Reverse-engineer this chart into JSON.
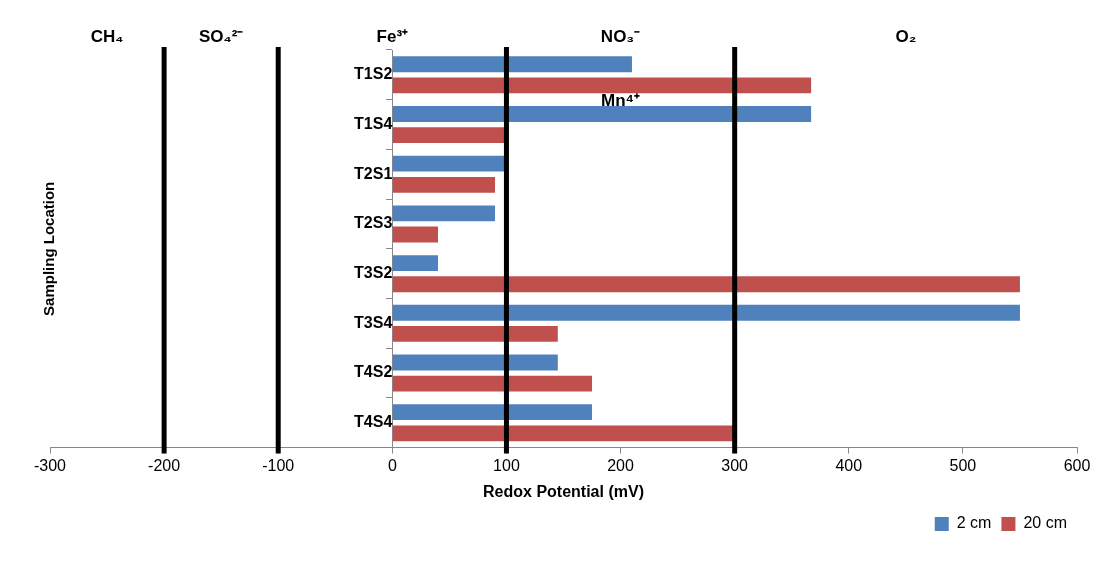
{
  "chart_data": {
    "type": "bar",
    "orientation": "horizontal",
    "xlabel": "Redox Potential (mV)",
    "ylabel": "Sampling Location",
    "categories": [
      "T1S2",
      "T1S4",
      "T2S1",
      "T2S3",
      "T3S2",
      "T3S4",
      "T4S2",
      "T4S4"
    ],
    "series": [
      {
        "name": "2 cm",
        "color": "#4f81bd",
        "values": [
          210,
          367,
          100,
          90,
          40,
          550,
          145,
          175
        ]
      },
      {
        "name": "20 cm",
        "color": "#c0504d",
        "values": [
          367,
          100,
          90,
          40,
          550,
          145,
          175,
          300
        ]
      }
    ],
    "xlim": [
      -300,
      600
    ],
    "xticks": [
      -300,
      -200,
      -100,
      0,
      100,
      200,
      300,
      400,
      500,
      600
    ],
    "ref_lines": [
      {
        "axis": "x",
        "value": -200,
        "color": "#000000"
      },
      {
        "axis": "x",
        "value": -100,
        "color": "#000000"
      },
      {
        "axis": "x",
        "value": 100,
        "color": "#000000"
      },
      {
        "axis": "x",
        "value": 300,
        "color": "#000000"
      }
    ],
    "annotations": [
      "CH₄",
      "SO₄²⁻",
      "Fe³⁺",
      "NO₃⁻",
      "O₂",
      "Mn⁴⁺"
    ],
    "grid": false,
    "legend": "bottom right"
  }
}
